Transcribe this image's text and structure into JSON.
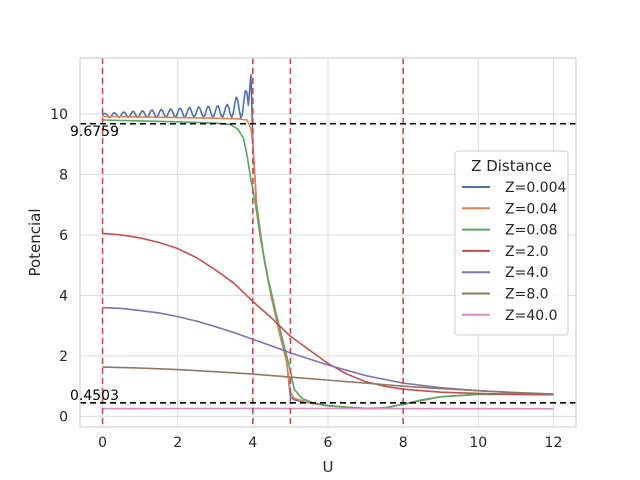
{
  "chart_data": {
    "type": "line",
    "title": "",
    "xlabel": "U",
    "ylabel": "Potencial",
    "xlim": [
      -0.6,
      12.6
    ],
    "ylim": [
      -0.35,
      11.85
    ],
    "xticks": [
      0,
      2,
      4,
      6,
      8,
      10,
      12
    ],
    "yticks": [
      0,
      2,
      4,
      6,
      8,
      10
    ],
    "grid": true,
    "legend": {
      "title": "Z Distance",
      "placement": "center-right"
    },
    "vlines": [
      0,
      4,
      5,
      8
    ],
    "vline_color": "#c44e52",
    "hlines": [
      {
        "y": 9.6759,
        "label": "9.6759"
      },
      {
        "y": 0.4503,
        "label": "0.4503"
      }
    ],
    "series": [
      {
        "name": "Z=0.004",
        "color": "#4c72b0",
        "oscillate": true,
        "points": [
          [
            0,
            9.95
          ],
          [
            0.5,
            9.96
          ],
          [
            1,
            9.97
          ],
          [
            1.5,
            9.97
          ],
          [
            2,
            9.98
          ],
          [
            2.5,
            10.0
          ],
          [
            3,
            10.02
          ],
          [
            3.5,
            10.05
          ],
          [
            3.8,
            10.1
          ],
          [
            3.9,
            10.3
          ],
          [
            3.95,
            11.3
          ],
          [
            4.0,
            9.0
          ],
          [
            4.1,
            7.0
          ],
          [
            4.3,
            5.2
          ],
          [
            4.5,
            3.9
          ],
          [
            4.7,
            2.8
          ],
          [
            4.9,
            1.8
          ],
          [
            5.0,
            0.65
          ],
          [
            5.1,
            0.55
          ],
          [
            5.5,
            0.45
          ],
          [
            6,
            0.35
          ],
          [
            7,
            0.26
          ],
          [
            7.5,
            0.28
          ],
          [
            8,
            0.4
          ],
          [
            9,
            0.65
          ],
          [
            10,
            0.73
          ],
          [
            11,
            0.73
          ],
          [
            12,
            0.72
          ]
        ]
      },
      {
        "name": "Z=0.04",
        "color": "#dd8452",
        "points": [
          [
            0,
            9.92
          ],
          [
            1,
            9.9
          ],
          [
            2,
            9.88
          ],
          [
            3,
            9.86
          ],
          [
            3.6,
            9.84
          ],
          [
            3.85,
            9.8
          ],
          [
            3.95,
            9.5
          ],
          [
            4.0,
            9.0
          ],
          [
            4.1,
            7.0
          ],
          [
            4.3,
            5.2
          ],
          [
            4.5,
            3.9
          ],
          [
            4.7,
            2.8
          ],
          [
            4.9,
            1.8
          ],
          [
            5.0,
            0.8
          ],
          [
            5.1,
            0.6
          ],
          [
            5.5,
            0.45
          ],
          [
            6,
            0.35
          ],
          [
            7,
            0.26
          ],
          [
            7.5,
            0.28
          ],
          [
            8,
            0.4
          ],
          [
            9,
            0.65
          ],
          [
            10,
            0.73
          ],
          [
            11,
            0.73
          ],
          [
            12,
            0.72
          ]
        ]
      },
      {
        "name": "Z=0.08",
        "color": "#55a868",
        "points": [
          [
            0,
            9.8
          ],
          [
            1,
            9.77
          ],
          [
            2,
            9.74
          ],
          [
            3,
            9.7
          ],
          [
            3.4,
            9.65
          ],
          [
            3.6,
            9.5
          ],
          [
            3.75,
            9.2
          ],
          [
            3.85,
            8.6
          ],
          [
            3.95,
            7.8
          ],
          [
            4.05,
            7.2
          ],
          [
            4.2,
            5.9
          ],
          [
            4.4,
            4.6
          ],
          [
            4.6,
            3.5
          ],
          [
            4.8,
            2.5
          ],
          [
            5.0,
            1.5
          ],
          [
            5.1,
            0.9
          ],
          [
            5.3,
            0.6
          ],
          [
            5.6,
            0.45
          ],
          [
            6,
            0.36
          ],
          [
            6.5,
            0.3
          ],
          [
            7,
            0.27
          ],
          [
            7.5,
            0.28
          ],
          [
            8,
            0.4
          ],
          [
            8.5,
            0.55
          ],
          [
            9,
            0.65
          ],
          [
            10,
            0.73
          ],
          [
            11,
            0.74
          ],
          [
            12,
            0.73
          ]
        ]
      },
      {
        "name": "Z=2.0",
        "color": "#c44e52",
        "points": [
          [
            0,
            6.05
          ],
          [
            0.5,
            6.0
          ],
          [
            1,
            5.9
          ],
          [
            1.5,
            5.75
          ],
          [
            2,
            5.55
          ],
          [
            2.5,
            5.25
          ],
          [
            3,
            4.85
          ],
          [
            3.5,
            4.4
          ],
          [
            4,
            3.8
          ],
          [
            4.5,
            3.25
          ],
          [
            5,
            2.65
          ],
          [
            5.5,
            2.2
          ],
          [
            6,
            1.75
          ],
          [
            6.5,
            1.4
          ],
          [
            7,
            1.15
          ],
          [
            7.5,
            1.0
          ],
          [
            8,
            0.9
          ],
          [
            9,
            0.8
          ],
          [
            10,
            0.76
          ],
          [
            11,
            0.73
          ],
          [
            12,
            0.72
          ]
        ]
      },
      {
        "name": "Z=4.0",
        "color": "#8172b3",
        "points": [
          [
            0,
            3.6
          ],
          [
            0.5,
            3.57
          ],
          [
            1,
            3.5
          ],
          [
            1.5,
            3.42
          ],
          [
            2,
            3.3
          ],
          [
            2.5,
            3.15
          ],
          [
            3,
            2.97
          ],
          [
            3.5,
            2.77
          ],
          [
            4,
            2.55
          ],
          [
            4.5,
            2.33
          ],
          [
            5,
            2.1
          ],
          [
            6,
            1.7
          ],
          [
            7,
            1.35
          ],
          [
            8,
            1.1
          ],
          [
            9,
            0.95
          ],
          [
            10,
            0.85
          ],
          [
            11,
            0.78
          ],
          [
            12,
            0.74
          ]
        ]
      },
      {
        "name": "Z=8.0",
        "color": "#937860",
        "points": [
          [
            0,
            1.63
          ],
          [
            1,
            1.6
          ],
          [
            2,
            1.55
          ],
          [
            3,
            1.48
          ],
          [
            4,
            1.4
          ],
          [
            5,
            1.3
          ],
          [
            6,
            1.2
          ],
          [
            7,
            1.1
          ],
          [
            8,
            1.0
          ],
          [
            9,
            0.92
          ],
          [
            10,
            0.85
          ],
          [
            11,
            0.79
          ],
          [
            12,
            0.74
          ]
        ]
      },
      {
        "name": "Z=40.0",
        "color": "#da8bc3",
        "points": [
          [
            0,
            0.26
          ],
          [
            2,
            0.262
          ],
          [
            4,
            0.263
          ],
          [
            6,
            0.262
          ],
          [
            8,
            0.26
          ],
          [
            10,
            0.258
          ],
          [
            12,
            0.255
          ]
        ]
      }
    ]
  }
}
